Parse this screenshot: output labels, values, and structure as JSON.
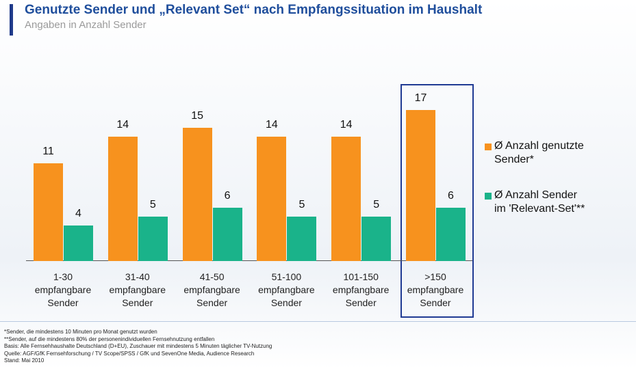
{
  "chart_data": {
    "type": "bar",
    "title": "Genutzte Sender und „Relevant Set“ nach Empfangssituation im Haushalt",
    "subtitle": "Angaben in Anzahl Sender",
    "categories": [
      "1-30\nempfangbare\nSender",
      "31-40\nempfangbare\nSender",
      "41-50\nempfangbare\nSender",
      "51-100\nempfangbare\nSender",
      "101-150\nempfangbare\nSender",
      ">150\nempfangbare\nSender"
    ],
    "series": [
      {
        "name": "Ø Anzahl genutzte\nSender*",
        "color": "#f7921e",
        "values": [
          11,
          14,
          15,
          14,
          14,
          17
        ]
      },
      {
        "name": "Ø Anzahl Sender\nim 'Relevant-Set'**",
        "color": "#1ab38a",
        "values": [
          4,
          5,
          6,
          5,
          5,
          6
        ]
      }
    ],
    "footnotes": [
      "*Sender, die mindestens 10 Minuten pro Monat genutzt wurden",
      "**Sender, auf die mindestens 80% der personenindividuellen Fernsehnutzung entfallen",
      "Basis: Alle Fernsehhaushalte Deutschland (D+EU), Zuschauer mit mindestens 5 Minuten täglicher TV-Nutzung",
      "Quelle: AGF/GfK Fernsehforschung / TV Scope/SPSS / GfK und SevenOne Media, Audience Research",
      "Stand: Mai 2010"
    ]
  }
}
